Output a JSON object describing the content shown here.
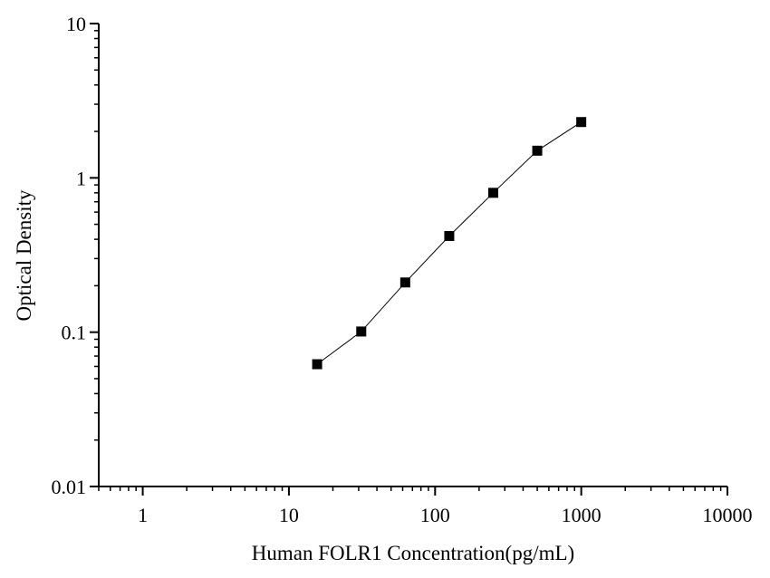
{
  "chart_data": {
    "type": "line",
    "xlabel": "Human FOLR1 Concentration(pg/mL)",
    "ylabel": "Optical Density",
    "x_scale": "log",
    "y_scale": "log",
    "xlim": [
      0.5,
      10000
    ],
    "ylim": [
      0.01,
      10
    ],
    "x_ticks": [
      {
        "value": 1,
        "label": "1"
      },
      {
        "value": 10,
        "label": "10"
      },
      {
        "value": 100,
        "label": "100"
      },
      {
        "value": 1000,
        "label": "1000"
      },
      {
        "value": 10000,
        "label": "10000"
      }
    ],
    "y_ticks": [
      {
        "value": 0.01,
        "label": "0.01"
      },
      {
        "value": 0.1,
        "label": "0.1"
      },
      {
        "value": 1,
        "label": "1"
      },
      {
        "value": 10,
        "label": "10"
      }
    ],
    "grid": false,
    "legend": "none",
    "series": [
      {
        "marker": "square",
        "color": "#000000",
        "x": [
          15.6,
          31.25,
          62.5,
          125,
          250,
          500,
          1000
        ],
        "y": [
          0.062,
          0.101,
          0.21,
          0.42,
          0.8,
          1.5,
          2.3
        ]
      }
    ]
  }
}
